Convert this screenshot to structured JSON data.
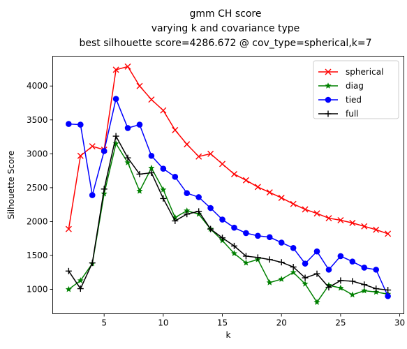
{
  "chart_data": {
    "type": "line",
    "title": [
      "gmm CH score",
      "varying k and covariance type",
      "best silhouette score=4286.672 @ cov_type=spherical,k=7"
    ],
    "xlabel": "k",
    "ylabel": "Silhouette Score",
    "xlim": [
      0.65,
      30.35
    ],
    "ylim": [
      640,
      4440
    ],
    "xticks": [
      5,
      10,
      15,
      20,
      25,
      30
    ],
    "yticks": [
      1000,
      1500,
      2000,
      2500,
      3000,
      3500,
      4000
    ],
    "legend_position": "top-right",
    "grid": false,
    "x": [
      2,
      3,
      4,
      5,
      6,
      7,
      8,
      9,
      10,
      11,
      12,
      13,
      14,
      15,
      16,
      17,
      18,
      19,
      20,
      21,
      22,
      23,
      24,
      25,
      26,
      27,
      28,
      29
    ],
    "series": [
      {
        "name": "spherical",
        "color": "#ff0000",
        "marker": "x",
        "values": [
          1890,
          2970,
          3110,
          3060,
          4240,
          4287,
          4000,
          3800,
          3640,
          3350,
          3140,
          2960,
          3000,
          2850,
          2700,
          2610,
          2510,
          2430,
          2350,
          2260,
          2180,
          2120,
          2050,
          2020,
          1980,
          1930,
          1880,
          1820
        ]
      },
      {
        "name": "diag",
        "color": "#008000",
        "marker": "star",
        "values": [
          1000,
          1130,
          1380,
          2410,
          3150,
          2870,
          2450,
          2790,
          2470,
          2060,
          2160,
          2110,
          1890,
          1720,
          1530,
          1390,
          1440,
          1100,
          1150,
          1250,
          1080,
          810,
          1060,
          1020,
          920,
          980,
          960,
          930
        ]
      },
      {
        "name": "tied",
        "color": "#0000ff",
        "marker": "circle",
        "values": [
          3440,
          3430,
          2390,
          3040,
          3810,
          3380,
          3430,
          2970,
          2780,
          2660,
          2420,
          2360,
          2200,
          2030,
          1910,
          1830,
          1790,
          1770,
          1690,
          1610,
          1380,
          1560,
          1290,
          1490,
          1410,
          1320,
          1290,
          900
        ]
      },
      {
        "name": "full",
        "color": "#000000",
        "marker": "plus",
        "values": [
          1270,
          1010,
          1390,
          2480,
          3260,
          2940,
          2700,
          2720,
          2340,
          2010,
          2110,
          2150,
          1890,
          1760,
          1640,
          1490,
          1470,
          1440,
          1400,
          1330,
          1170,
          1230,
          1030,
          1130,
          1120,
          1070,
          1010,
          990
        ]
      }
    ]
  }
}
